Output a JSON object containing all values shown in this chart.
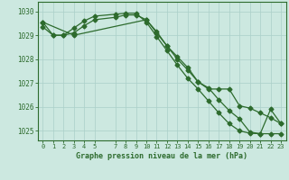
{
  "title": "Graphe pression niveau de la mer (hPa)",
  "bg_color": "#cce8e0",
  "grid_color": "#aacfc8",
  "line_color": "#2d6b2d",
  "ylim": [
    1024.6,
    1030.4
  ],
  "yticks": [
    1025,
    1026,
    1027,
    1028,
    1029,
    1030
  ],
  "xlim": [
    -0.5,
    23.5
  ],
  "xticks": [
    0,
    1,
    2,
    3,
    4,
    5,
    7,
    8,
    9,
    10,
    11,
    12,
    13,
    14,
    15,
    16,
    17,
    18,
    19,
    20,
    21,
    22,
    23
  ],
  "line1_x": [
    0,
    1,
    2,
    3,
    4,
    5,
    7,
    8,
    9,
    10,
    11,
    12,
    13,
    14,
    15,
    16,
    17,
    18,
    19,
    20,
    21,
    22,
    23
  ],
  "line1_y": [
    1029.35,
    1029.0,
    1029.0,
    1029.1,
    1029.4,
    1029.65,
    1029.75,
    1029.85,
    1029.85,
    1029.65,
    1029.1,
    1028.55,
    1028.0,
    1027.55,
    1027.05,
    1026.75,
    1026.75,
    1026.75,
    1026.05,
    1025.95,
    1025.75,
    1025.55,
    1025.3
  ],
  "line2_x": [
    0,
    1,
    2,
    3,
    4,
    5,
    7,
    8,
    9,
    10,
    11,
    12,
    13,
    14,
    15,
    16,
    17,
    18,
    19,
    20,
    21,
    22,
    23
  ],
  "line2_y": [
    1029.55,
    1029.0,
    1029.0,
    1029.3,
    1029.6,
    1029.8,
    1029.88,
    1029.92,
    1029.92,
    1029.55,
    1028.95,
    1028.35,
    1027.75,
    1027.2,
    1026.75,
    1026.25,
    1025.75,
    1025.3,
    1025.0,
    1024.9,
    1024.88,
    1024.88,
    1024.88
  ],
  "line3_x": [
    0,
    3,
    10,
    11,
    12,
    13,
    14,
    15,
    16,
    17,
    18,
    19,
    20,
    21,
    22,
    23
  ],
  "line3_y": [
    1029.55,
    1029.0,
    1029.65,
    1029.15,
    1028.55,
    1028.1,
    1027.65,
    1027.05,
    1026.8,
    1026.3,
    1025.85,
    1025.5,
    1024.95,
    1024.88,
    1025.9,
    1025.3
  ]
}
